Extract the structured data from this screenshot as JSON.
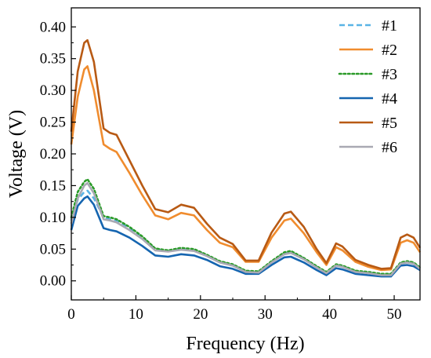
{
  "chart_data": {
    "type": "line",
    "xlabel": "Frequency (Hz)",
    "ylabel": "Voltage (V)",
    "xlim": [
      0,
      54
    ],
    "ylim": [
      -0.03,
      0.43
    ],
    "xticks": [
      0,
      10,
      20,
      30,
      40,
      50
    ],
    "yticks": [
      0.0,
      0.05,
      0.1,
      0.15,
      0.2,
      0.25,
      0.3,
      0.35,
      0.4
    ],
    "xtick_labels": [
      "0",
      "10",
      "20",
      "30",
      "40",
      "50"
    ],
    "ytick_labels": [
      "0.00",
      "0.05",
      "0.10",
      "0.15",
      "0.20",
      "0.25",
      "0.30",
      "0.35",
      "0.40"
    ],
    "grid": false,
    "legend_position": "top-right",
    "series": [
      {
        "name": "#1",
        "color": "#5ab4e5",
        "dash": "dashed",
        "points": [
          [
            0,
            0.095
          ],
          [
            1,
            0.128
          ],
          [
            2,
            0.14
          ],
          [
            2.5,
            0.142
          ],
          [
            3.5,
            0.13
          ],
          [
            5,
            0.1
          ],
          [
            6,
            0.097
          ],
          [
            7,
            0.095
          ],
          [
            9,
            0.083
          ],
          [
            11,
            0.068
          ],
          [
            13,
            0.05
          ],
          [
            15,
            0.047
          ],
          [
            17,
            0.05
          ],
          [
            19,
            0.048
          ],
          [
            21,
            0.04
          ],
          [
            23,
            0.03
          ],
          [
            25,
            0.025
          ],
          [
            27,
            0.015
          ],
          [
            29,
            0.014
          ],
          [
            31,
            0.03
          ],
          [
            33,
            0.043
          ],
          [
            34,
            0.045
          ],
          [
            36,
            0.035
          ],
          [
            38,
            0.022
          ],
          [
            39.5,
            0.013
          ],
          [
            41,
            0.025
          ],
          [
            42,
            0.023
          ],
          [
            44,
            0.015
          ],
          [
            46,
            0.013
          ],
          [
            48,
            0.01
          ],
          [
            49.5,
            0.01
          ],
          [
            51,
            0.028
          ],
          [
            52,
            0.03
          ],
          [
            53,
            0.028
          ],
          [
            54,
            0.02
          ]
        ]
      },
      {
        "name": "#2",
        "color": "#f08c2e",
        "dash": "solid",
        "points": [
          [
            0,
            0.215
          ],
          [
            1,
            0.29
          ],
          [
            2,
            0.333
          ],
          [
            2.5,
            0.338
          ],
          [
            3.5,
            0.3
          ],
          [
            5,
            0.215
          ],
          [
            6,
            0.208
          ],
          [
            7,
            0.203
          ],
          [
            9,
            0.17
          ],
          [
            11,
            0.135
          ],
          [
            13,
            0.103
          ],
          [
            15,
            0.097
          ],
          [
            17,
            0.107
          ],
          [
            19,
            0.103
          ],
          [
            21,
            0.08
          ],
          [
            23,
            0.06
          ],
          [
            25,
            0.053
          ],
          [
            27,
            0.03
          ],
          [
            29,
            0.03
          ],
          [
            31,
            0.068
          ],
          [
            33,
            0.095
          ],
          [
            34,
            0.098
          ],
          [
            36,
            0.075
          ],
          [
            38,
            0.045
          ],
          [
            39.5,
            0.025
          ],
          [
            41,
            0.053
          ],
          [
            42,
            0.048
          ],
          [
            44,
            0.03
          ],
          [
            46,
            0.022
          ],
          [
            48,
            0.017
          ],
          [
            49.5,
            0.018
          ],
          [
            51,
            0.06
          ],
          [
            52,
            0.064
          ],
          [
            53,
            0.06
          ],
          [
            54,
            0.045
          ]
        ]
      },
      {
        "name": "#3",
        "color": "#2a9a28",
        "dash": "dotted",
        "points": [
          [
            0,
            0.1
          ],
          [
            1,
            0.14
          ],
          [
            2,
            0.156
          ],
          [
            2.5,
            0.16
          ],
          [
            3.5,
            0.145
          ],
          [
            5,
            0.102
          ],
          [
            6,
            0.1
          ],
          [
            7,
            0.097
          ],
          [
            9,
            0.085
          ],
          [
            11,
            0.07
          ],
          [
            13,
            0.051
          ],
          [
            15,
            0.048
          ],
          [
            17,
            0.052
          ],
          [
            19,
            0.05
          ],
          [
            21,
            0.041
          ],
          [
            23,
            0.031
          ],
          [
            25,
            0.026
          ],
          [
            27,
            0.016
          ],
          [
            29,
            0.015
          ],
          [
            31,
            0.031
          ],
          [
            33,
            0.045
          ],
          [
            34,
            0.047
          ],
          [
            36,
            0.036
          ],
          [
            38,
            0.023
          ],
          [
            39.5,
            0.014
          ],
          [
            41,
            0.026
          ],
          [
            42,
            0.024
          ],
          [
            44,
            0.016
          ],
          [
            46,
            0.014
          ],
          [
            48,
            0.011
          ],
          [
            49.5,
            0.011
          ],
          [
            51,
            0.029
          ],
          [
            52,
            0.031
          ],
          [
            53,
            0.029
          ],
          [
            54,
            0.021
          ]
        ]
      },
      {
        "name": "#4",
        "color": "#1565b0",
        "dash": "solid",
        "points": [
          [
            0,
            0.08
          ],
          [
            1,
            0.118
          ],
          [
            2,
            0.13
          ],
          [
            2.5,
            0.133
          ],
          [
            3.5,
            0.12
          ],
          [
            5,
            0.083
          ],
          [
            6,
            0.08
          ],
          [
            7,
            0.078
          ],
          [
            9,
            0.068
          ],
          [
            11,
            0.055
          ],
          [
            13,
            0.04
          ],
          [
            15,
            0.038
          ],
          [
            17,
            0.042
          ],
          [
            19,
            0.04
          ],
          [
            21,
            0.033
          ],
          [
            23,
            0.023
          ],
          [
            25,
            0.019
          ],
          [
            27,
            0.011
          ],
          [
            29,
            0.011
          ],
          [
            31,
            0.025
          ],
          [
            33,
            0.037
          ],
          [
            34,
            0.038
          ],
          [
            36,
            0.029
          ],
          [
            38,
            0.017
          ],
          [
            39.5,
            0.009
          ],
          [
            41,
            0.02
          ],
          [
            42,
            0.018
          ],
          [
            44,
            0.011
          ],
          [
            46,
            0.009
          ],
          [
            48,
            0.007
          ],
          [
            49.5,
            0.007
          ],
          [
            51,
            0.024
          ],
          [
            52,
            0.025
          ],
          [
            53,
            0.023
          ],
          [
            54,
            0.017
          ]
        ]
      },
      {
        "name": "#5",
        "color": "#b85a14",
        "dash": "solid",
        "points": [
          [
            0,
            0.235
          ],
          [
            1,
            0.33
          ],
          [
            2,
            0.375
          ],
          [
            2.5,
            0.379
          ],
          [
            3.5,
            0.345
          ],
          [
            5,
            0.24
          ],
          [
            6,
            0.233
          ],
          [
            7,
            0.23
          ],
          [
            9,
            0.19
          ],
          [
            11,
            0.15
          ],
          [
            13,
            0.113
          ],
          [
            15,
            0.108
          ],
          [
            17,
            0.12
          ],
          [
            19,
            0.115
          ],
          [
            21,
            0.09
          ],
          [
            23,
            0.068
          ],
          [
            25,
            0.058
          ],
          [
            27,
            0.032
          ],
          [
            29,
            0.032
          ],
          [
            31,
            0.076
          ],
          [
            33,
            0.106
          ],
          [
            34,
            0.109
          ],
          [
            36,
            0.085
          ],
          [
            38,
            0.05
          ],
          [
            39.5,
            0.028
          ],
          [
            41,
            0.059
          ],
          [
            42,
            0.054
          ],
          [
            44,
            0.033
          ],
          [
            46,
            0.025
          ],
          [
            48,
            0.019
          ],
          [
            49.5,
            0.02
          ],
          [
            51,
            0.068
          ],
          [
            52,
            0.073
          ],
          [
            53,
            0.068
          ],
          [
            54,
            0.052
          ]
        ]
      },
      {
        "name": "#6",
        "color": "#a9a9b3",
        "dash": "solid",
        "points": [
          [
            0,
            0.09
          ],
          [
            1,
            0.13
          ],
          [
            2,
            0.15
          ],
          [
            2.5,
            0.154
          ],
          [
            3.5,
            0.138
          ],
          [
            5,
            0.097
          ],
          [
            6,
            0.095
          ],
          [
            7,
            0.092
          ],
          [
            9,
            0.08
          ],
          [
            11,
            0.066
          ],
          [
            13,
            0.048
          ],
          [
            15,
            0.046
          ],
          [
            17,
            0.049
          ],
          [
            19,
            0.047
          ],
          [
            21,
            0.039
          ],
          [
            23,
            0.029
          ],
          [
            25,
            0.024
          ],
          [
            27,
            0.014
          ],
          [
            29,
            0.013
          ],
          [
            31,
            0.029
          ],
          [
            33,
            0.042
          ],
          [
            34,
            0.044
          ],
          [
            36,
            0.034
          ],
          [
            38,
            0.021
          ],
          [
            39.5,
            0.012
          ],
          [
            41,
            0.024
          ],
          [
            42,
            0.022
          ],
          [
            44,
            0.014
          ],
          [
            46,
            0.012
          ],
          [
            48,
            0.009
          ],
          [
            49.5,
            0.009
          ],
          [
            51,
            0.027
          ],
          [
            52,
            0.029
          ],
          [
            53,
            0.027
          ],
          [
            54,
            0.019
          ]
        ]
      }
    ]
  }
}
